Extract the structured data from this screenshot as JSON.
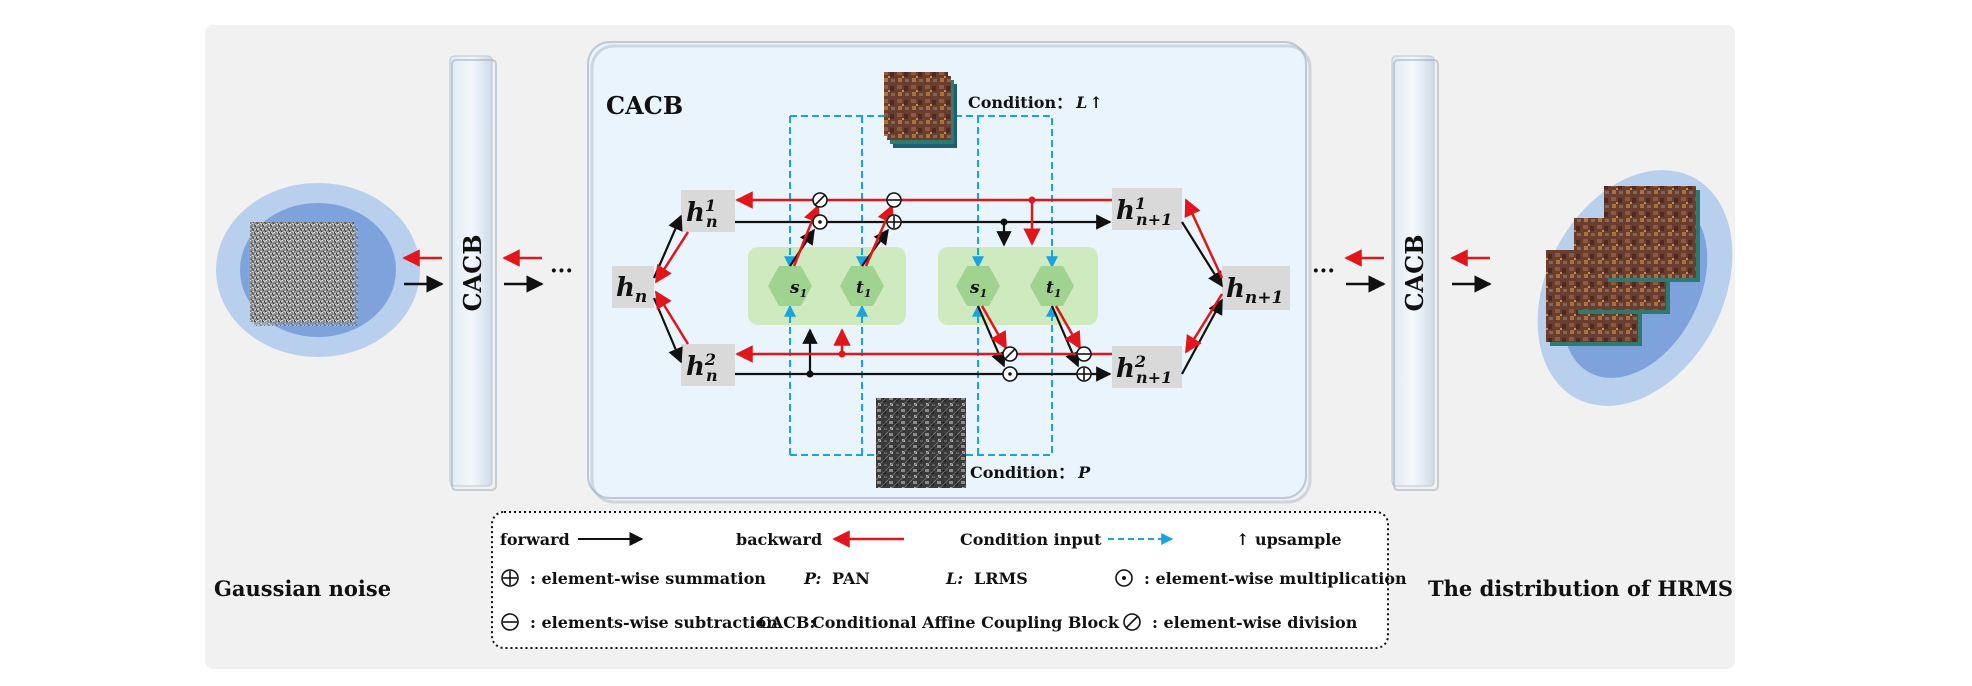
{
  "left_caption": "Gaussian noise",
  "right_caption": "The distribution of HRMS",
  "block_label": "CACB",
  "cacb_box_title": "CACB",
  "ellipsis": "···",
  "condition_top": "Condition：",
  "condition_top_var": "L",
  "condition_top_arrow": "↑",
  "condition_bottom": "Condition：",
  "condition_bottom_var": "P",
  "nodes": {
    "h_n": {
      "base": "h",
      "sub": "n",
      "sup": ""
    },
    "h_n1": {
      "base": "h",
      "sub": "n",
      "sup": "1"
    },
    "h_n2": {
      "base": "h",
      "sub": "n",
      "sup": "2"
    },
    "h_np1": {
      "base": "h",
      "sub": "n+1",
      "sup": ""
    },
    "h_np1_1": {
      "base": "h",
      "sub": "n+1",
      "sup": "1"
    },
    "h_np1_2": {
      "base": "h",
      "sub": "n+1",
      "sup": "2"
    }
  },
  "hex_labels": {
    "s": "s",
    "t": "t",
    "sub": "1"
  },
  "legend": {
    "forward": "forward",
    "backward": "backward",
    "condition_input": "Condition input",
    "upsample": "↑ upsample",
    "sum": ": element-wise summation",
    "pan_key": "P:",
    "pan": "PAN",
    "lrms_key": "L:",
    "lrms": "LRMS",
    "mult": ": element-wise multiplication",
    "sub": ": elements-wise subtraction",
    "cacb_key": "CACB:",
    "cacb": "Conditional Affine Coupling Block",
    "div": ": element-wise division"
  },
  "colors": {
    "forward": "#111111",
    "backward": "#e0161b",
    "condition": "#1aa3df",
    "panel_bg": "#f1f1f1",
    "box_bg": "#eaf4fc",
    "hex_fill": "#9fd38f",
    "hex_panel": "#cfeabf"
  }
}
